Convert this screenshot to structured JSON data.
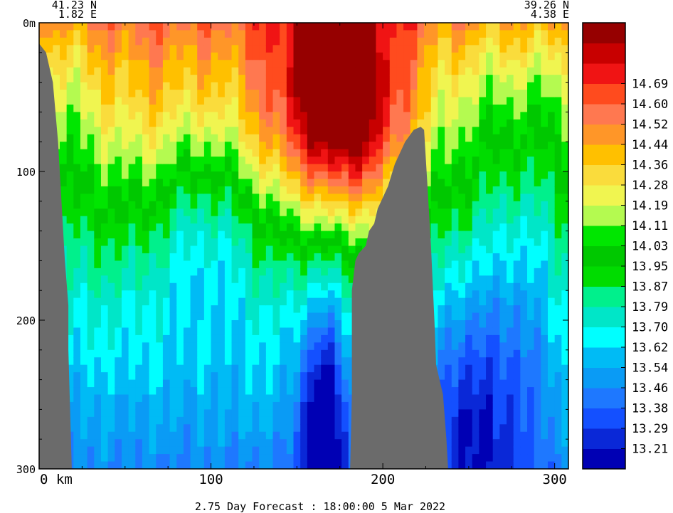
{
  "chart_data": {
    "type": "heatmap",
    "variable_note": "",
    "start_point": {
      "lat": "41.23 N",
      "lon": "1.82 E"
    },
    "end_point": {
      "lat": "39.26 N",
      "lon": "4.38 E"
    },
    "x_axis": {
      "unit_label": "km",
      "range": [
        0,
        308
      ],
      "ticks": [
        0,
        100,
        200,
        300
      ],
      "tick_labels": [
        "0 km",
        "100",
        "200",
        "300"
      ]
    },
    "y_axis": {
      "unit_label": "m",
      "range": [
        0,
        300
      ],
      "inverted": true,
      "ticks": [
        0,
        100,
        200,
        300
      ],
      "tick_labels": [
        "0m",
        "100",
        "200",
        "300"
      ]
    },
    "colorbar": {
      "placement": "right",
      "colors": [
        "#0000b4",
        "#0a28d7",
        "#1450ff",
        "#1e78ff",
        "#0a9bf5",
        "#00bbf5",
        "#00ffff",
        "#00e6c8",
        "#00f08c",
        "#00dc00",
        "#00c800",
        "#00e600",
        "#b4fa50",
        "#f0f550",
        "#fadc3c",
        "#ffc000",
        "#ff9628",
        "#ff7850",
        "#ff4b1e",
        "#f01414",
        "#c80000",
        "#960000"
      ],
      "labels": [
        "13.21",
        "13.29",
        "13.38",
        "13.46",
        "13.54",
        "13.62",
        "13.70",
        "13.79",
        "13.87",
        "13.95",
        "14.03",
        "14.11",
        "14.19",
        "14.28",
        "14.36",
        "14.44",
        "14.52",
        "14.60",
        "14.69"
      ]
    },
    "land_color": "#6b6b6b",
    "footer": "2.75 Day Forecast : 18:00:00   5 Mar 2022"
  }
}
